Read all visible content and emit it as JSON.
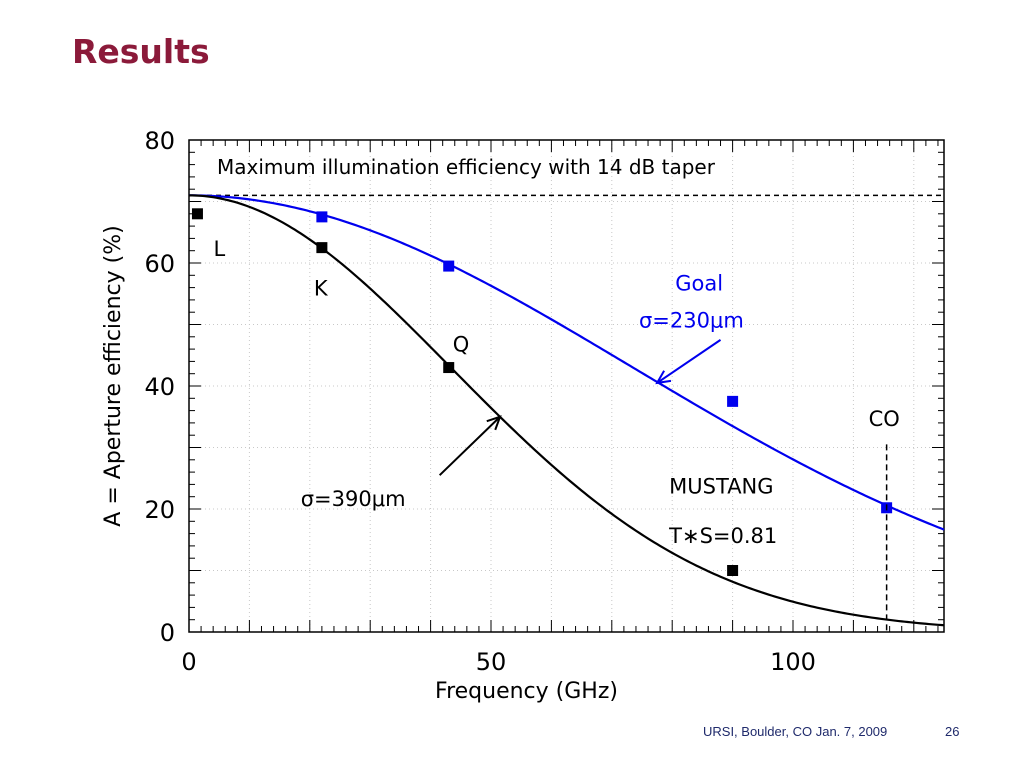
{
  "slide": {
    "title": "Results",
    "footer_text": "URSI, Boulder, CO Jan. 7, 2009",
    "page_number": "26"
  },
  "colors": {
    "title": "#8b1a3a",
    "goal_curve": "#0000ee",
    "mustang_curve": "#000000",
    "footer": "#1f2a6b"
  },
  "chart_data": {
    "type": "line",
    "xlabel": "Frequency (GHz)",
    "ylabel": "A = Aperture efficiency (%)",
    "xlim": [
      0,
      125
    ],
    "ylim": [
      0,
      80
    ],
    "x_ticks": [
      0,
      50,
      100
    ],
    "y_ticks": [
      0,
      20,
      40,
      60,
      80
    ],
    "grid": true,
    "reference_line": {
      "label": "Maximum illumination efficiency with 14 dB taper",
      "y": 71
    },
    "series": [
      {
        "label_line1": "Goal",
        "label_line2": "σ=230μm",
        "color": "#0000ee",
        "sigma_um": 230,
        "max_efficiency": 71,
        "points": [
          [
            22,
            67.5
          ],
          [
            43,
            59.5
          ],
          [
            90,
            37.5
          ],
          [
            115.5,
            20.2
          ]
        ]
      },
      {
        "label": "σ=390μm",
        "color": "#000000",
        "sigma_um": 390,
        "max_efficiency": 71,
        "points": [
          [
            1.4,
            68
          ],
          [
            22,
            62.5
          ],
          [
            43,
            43
          ],
          [
            90,
            10
          ]
        ]
      }
    ],
    "point_labels": [
      {
        "text": "L",
        "x": 1.4,
        "y": 68
      },
      {
        "text": "K",
        "x": 22,
        "y": 62.5
      },
      {
        "text": "Q",
        "x": 43,
        "y": 43
      }
    ],
    "annotations": [
      {
        "text": "CO",
        "x": 115.5
      },
      {
        "text": "MUSTANG"
      },
      {
        "text": "T∗S=0.81"
      }
    ]
  }
}
